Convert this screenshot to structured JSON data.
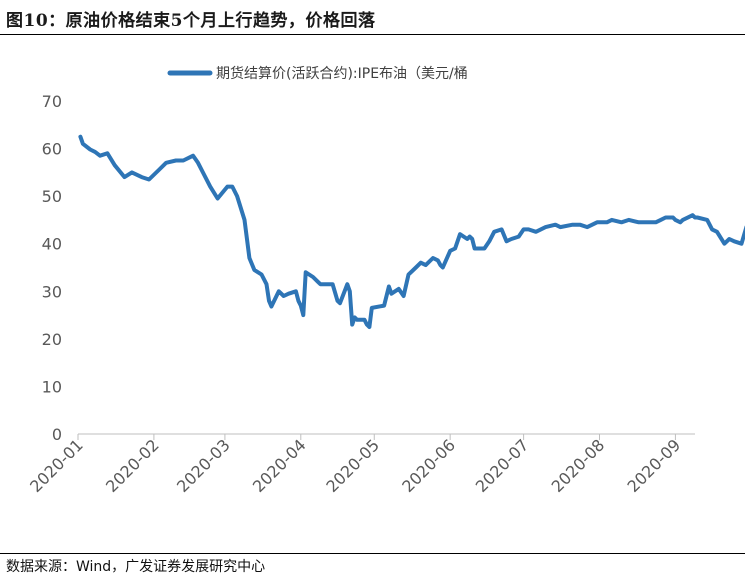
{
  "figure": {
    "title": "图10：原油价格结束5个月上行趋势，价格回落",
    "source": "数据来源：Wind，广发证券发展研究中心"
  },
  "colors": {
    "series": "#2e75b6",
    "axis": "#bfbfbf",
    "text": "#595959"
  },
  "chart_data": {
    "type": "line",
    "title": "",
    "xlabel": "",
    "ylabel": "",
    "ylim": [
      0,
      70
    ],
    "yticks": [
      0,
      10,
      20,
      30,
      40,
      50,
      60,
      70
    ],
    "xticks": [
      "2020-01",
      "2020-02",
      "2020-03",
      "2020-04",
      "2020-05",
      "2020-06",
      "2020-07",
      "2020-08",
      "2020-09"
    ],
    "grid": false,
    "legend": "top-center",
    "series": [
      {
        "name": "期货结算价(活跃合约):IPE布油（美元/桶",
        "x": [
          "2020-01-02",
          "2020-01-03",
          "2020-01-06",
          "2020-01-08",
          "2020-01-10",
          "2020-01-13",
          "2020-01-16",
          "2020-01-20",
          "2020-01-23",
          "2020-01-27",
          "2020-01-30",
          "2020-02-03",
          "2020-02-06",
          "2020-02-10",
          "2020-02-13",
          "2020-02-17",
          "2020-02-19",
          "2020-02-21",
          "2020-02-24",
          "2020-02-27",
          "2020-03-02",
          "2020-03-04",
          "2020-03-06",
          "2020-03-09",
          "2020-03-11",
          "2020-03-13",
          "2020-03-16",
          "2020-03-18",
          "2020-03-19",
          "2020-03-20",
          "2020-03-23",
          "2020-03-25",
          "2020-03-27",
          "2020-03-30",
          "2020-03-31",
          "2020-04-01",
          "2020-04-02",
          "2020-04-03",
          "2020-04-06",
          "2020-04-08",
          "2020-04-09",
          "2020-04-14",
          "2020-04-16",
          "2020-04-17",
          "2020-04-20",
          "2020-04-21",
          "2020-04-22",
          "2020-04-23",
          "2020-04-24",
          "2020-04-27",
          "2020-04-28",
          "2020-04-29",
          "2020-04-30",
          "2020-05-05",
          "2020-05-07",
          "2020-05-08",
          "2020-05-11",
          "2020-05-13",
          "2020-05-15",
          "2020-05-18",
          "2020-05-20",
          "2020-05-22",
          "2020-05-25",
          "2020-05-27",
          "2020-05-28",
          "2020-05-29",
          "2020-06-01",
          "2020-06-03",
          "2020-06-05",
          "2020-06-08",
          "2020-06-09",
          "2020-06-10",
          "2020-06-11",
          "2020-06-15",
          "2020-06-17",
          "2020-06-19",
          "2020-06-22",
          "2020-06-24",
          "2020-06-26",
          "2020-06-29",
          "2020-07-01",
          "2020-07-03",
          "2020-07-06",
          "2020-07-08",
          "2020-07-10",
          "2020-07-14",
          "2020-07-16",
          "2020-07-21",
          "2020-07-24",
          "2020-07-27",
          "2020-07-29",
          "2020-07-31",
          "2020-08-04",
          "2020-08-06",
          "2020-08-10",
          "2020-08-13",
          "2020-08-17",
          "2020-08-20",
          "2020-08-24",
          "2020-08-26",
          "2020-08-28",
          "2020-08-31",
          "2020-09-01",
          "2020-09-03",
          "2020-09-04",
          "2020-09-08",
          "2020-09-09",
          "2020-09-10",
          "2020-09-14",
          "2020-09-16",
          "2020-09-18",
          "2020-09-21",
          "2020-09-23",
          "2020-09-25",
          "2020-09-28",
          "2020-09-30",
          "2020-10-02",
          "2020-10-05"
        ],
        "values": [
          62.5,
          61.0,
          59.8,
          59.3,
          58.5,
          59.0,
          56.5,
          54.0,
          55.0,
          54.0,
          53.5,
          55.5,
          57.0,
          57.5,
          57.5,
          58.5,
          57.0,
          55.0,
          52.0,
          49.5,
          52.0,
          52.0,
          50.0,
          45.0,
          37.0,
          34.5,
          33.5,
          31.5,
          28.0,
          26.8,
          30.0,
          29.0,
          29.5,
          30.0,
          28.0,
          27.0,
          25.0,
          34.0,
          33.0,
          32.0,
          31.5,
          31.5,
          28.0,
          27.5,
          31.5,
          30.0,
          23.0,
          24.5,
          24.0,
          24.0,
          23.0,
          22.5,
          26.5,
          27.0,
          31.0,
          29.5,
          30.5,
          29.0,
          33.5,
          35.0,
          36.0,
          35.5,
          37.0,
          36.5,
          35.5,
          35.0,
          38.5,
          39.0,
          42.0,
          41.0,
          41.5,
          41.0,
          39.0,
          39.0,
          40.5,
          42.5,
          43.0,
          40.5,
          41.0,
          41.5,
          43.0,
          43.0,
          42.5,
          43.0,
          43.5,
          44.0,
          43.5,
          44.0,
          44.0,
          43.5,
          44.0,
          44.5,
          44.5,
          45.0,
          44.5,
          45.0,
          44.5,
          44.5,
          44.5,
          45.0,
          45.5,
          45.5,
          45.0,
          44.5,
          45.0,
          46.0,
          45.5,
          45.5,
          45.0,
          43.0,
          42.5,
          40.0,
          41.0,
          40.5,
          40.0,
          43.5,
          42.5,
          43.0
        ]
      }
    ]
  }
}
